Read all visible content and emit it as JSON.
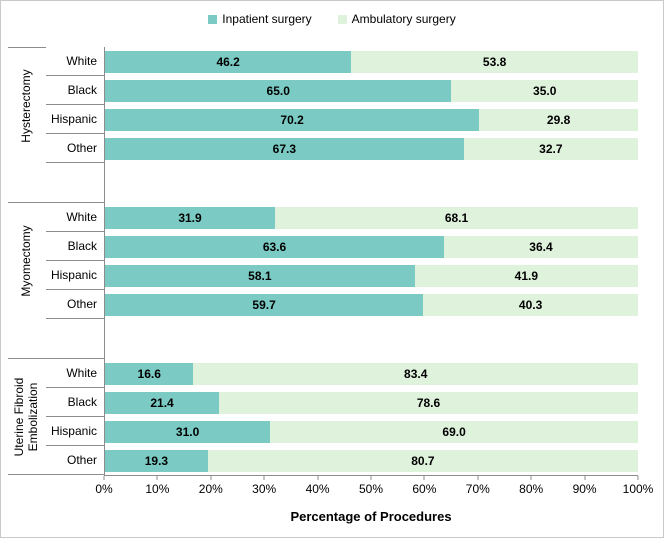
{
  "legend": {
    "items": [
      {
        "label": "Inpatient surgery",
        "color": "#7BCBC4"
      },
      {
        "label": "Ambulatory surgery",
        "color": "#DFF2DC"
      }
    ]
  },
  "chart_data": {
    "type": "bar",
    "subtype": "stacked-horizontal",
    "series_names": [
      "Inpatient surgery",
      "Ambulatory surgery"
    ],
    "series_colors": [
      "#7BCBC4",
      "#DFF2DC"
    ],
    "groups": [
      {
        "label": "Hysterectomy",
        "categories": [
          "White",
          "Black",
          "Hispanic",
          "Other"
        ],
        "series": [
          {
            "name": "Inpatient surgery",
            "values": [
              46.2,
              65.0,
              70.2,
              67.3
            ]
          },
          {
            "name": "Ambulatory surgery",
            "values": [
              53.8,
              35.0,
              29.8,
              32.7
            ]
          }
        ]
      },
      {
        "label": "Myomectomy",
        "categories": [
          "White",
          "Black",
          "Hispanic",
          "Other"
        ],
        "series": [
          {
            "name": "Inpatient surgery",
            "values": [
              31.9,
              63.6,
              58.1,
              59.7
            ]
          },
          {
            "name": "Ambulatory surgery",
            "values": [
              68.1,
              36.4,
              41.9,
              40.3
            ]
          }
        ]
      },
      {
        "label": "Uterine Fibroid Embolization",
        "categories": [
          "White",
          "Black",
          "Hispanic",
          "Other"
        ],
        "series": [
          {
            "name": "Inpatient surgery",
            "values": [
              16.6,
              21.4,
              31.0,
              19.3
            ]
          },
          {
            "name": "Ambulatory surgery",
            "values": [
              83.4,
              78.6,
              69.0,
              80.7
            ]
          }
        ]
      }
    ],
    "xlabel": "Percentage of Procedures",
    "x_ticks": [
      "0%",
      "10%",
      "20%",
      "30%",
      "40%",
      "50%",
      "60%",
      "70%",
      "80%",
      "90%",
      "100%"
    ],
    "xlim": [
      0,
      100
    ],
    "value_labels": true,
    "value_label_decimals": 1,
    "legend_position": "top",
    "grid": false
  }
}
